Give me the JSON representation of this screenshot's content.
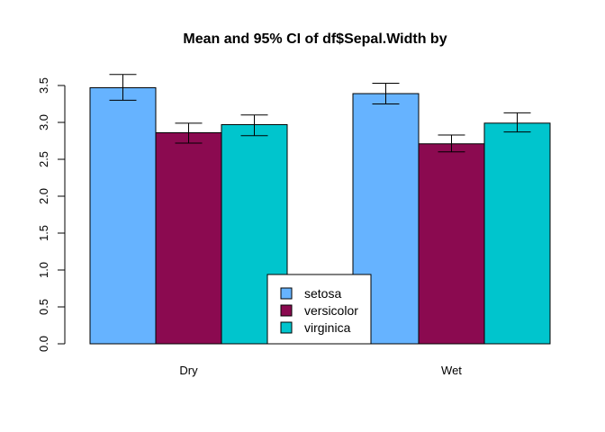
{
  "chart_data": {
    "type": "bar",
    "title": "Mean and 95% CI of df$Sepal.Width by",
    "xlabel": "",
    "ylabel": "",
    "categories": [
      "Dry",
      "Wet"
    ],
    "ylim": [
      0,
      3.5
    ],
    "y_ticks": [
      "0.0",
      "0.5",
      "1.0",
      "1.5",
      "2.0",
      "2.5",
      "3.0",
      "3.5"
    ],
    "grid": false,
    "legend_position": "bottom-center",
    "series": [
      {
        "name": "setosa",
        "color": "#66b3ff",
        "values": [
          3.47,
          3.39
        ],
        "ci_low": [
          3.3,
          3.25
        ],
        "ci_high": [
          3.65,
          3.53
        ]
      },
      {
        "name": "versicolor",
        "color": "#8b0a50",
        "values": [
          2.86,
          2.71
        ],
        "ci_low": [
          2.72,
          2.6
        ],
        "ci_high": [
          2.99,
          2.83
        ]
      },
      {
        "name": "virginica",
        "color": "#00c5cd",
        "values": [
          2.97,
          2.99
        ],
        "ci_low": [
          2.82,
          2.87
        ],
        "ci_high": [
          3.1,
          3.13
        ]
      }
    ]
  }
}
